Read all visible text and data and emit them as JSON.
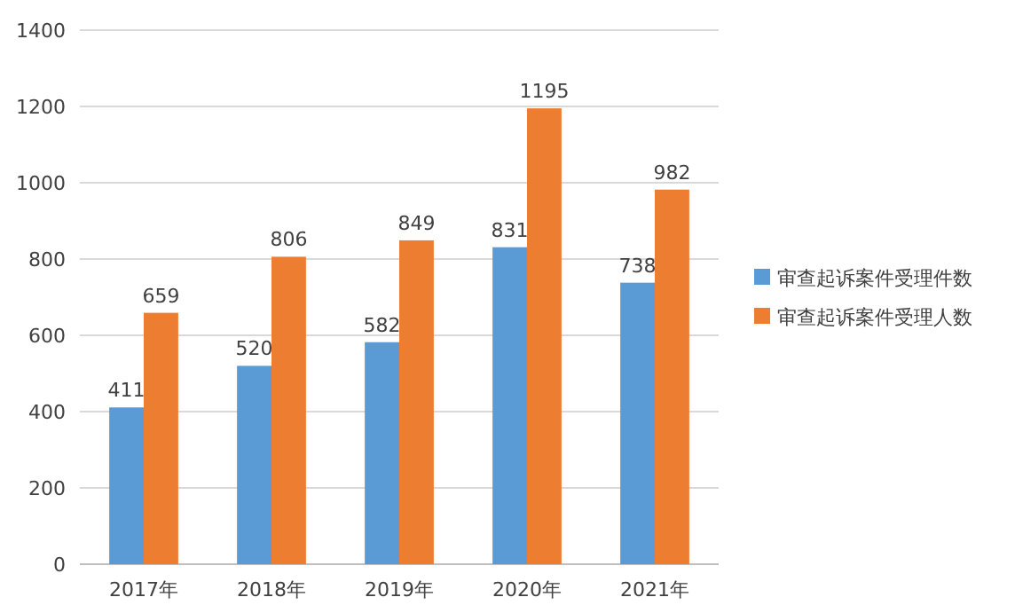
{
  "chart_data": {
    "type": "bar",
    "categories": [
      "2017年",
      "2018年",
      "2019年",
      "2020年",
      "2021年"
    ],
    "series": [
      {
        "name": "审查起诉案件受理件数",
        "color": "#5b9bd5",
        "values": [
          411,
          520,
          582,
          831,
          738
        ]
      },
      {
        "name": "审查起诉案件受理人数",
        "color": "#ed7d31",
        "values": [
          659,
          806,
          849,
          1195,
          982
        ]
      }
    ],
    "ylim": [
      0,
      1400
    ],
    "yticks": [
      0,
      200,
      400,
      600,
      800,
      1000,
      1200,
      1400
    ],
    "grid": "y",
    "legend": "right",
    "data_labels": true
  }
}
